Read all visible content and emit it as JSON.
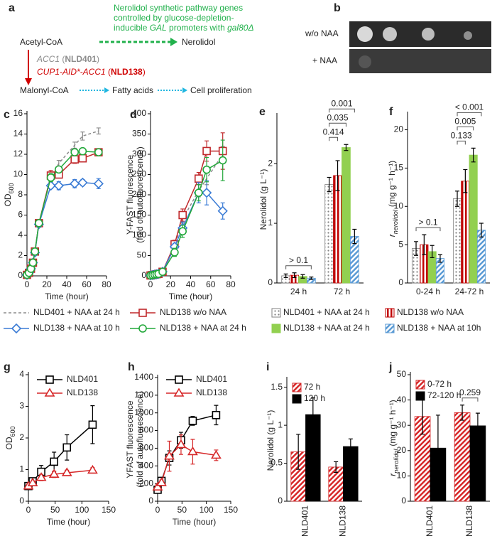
{
  "diagram": {
    "panel_label": "a",
    "note": [
      [
        "Nerolidol synthetic pathway genes"
      ],
      [
        "controlled by glucose-depletion-"
      ],
      [
        "inducible ",
        "GAL",
        " promoters with ",
        "gal80Δ"
      ]
    ],
    "substrate": "Acetyl-CoA",
    "product": "Nerolidol",
    "strains": [
      [
        "ACC1",
        " (",
        "NLD401",
        ")"
      ],
      [
        "CUP1-AID*-ACC1",
        " (",
        "NLD138",
        ")"
      ]
    ],
    "intermediate": "Malonyl-CoA",
    "downstream": [
      "Fatty acids",
      "Cell proliferation"
    ]
  },
  "plate": {
    "panel_label": "b",
    "rows": [
      "w/o NAA",
      "+ NAA"
    ]
  },
  "chart_data": [
    {
      "type": "line",
      "panel_label": "c",
      "xlabel": "Time (hour)",
      "ylabel": "OD",
      "ylabel_sub": "600",
      "x": [
        0,
        2,
        4,
        6,
        8,
        12,
        24,
        32,
        48,
        56,
        72
      ],
      "xlim": [
        0,
        80
      ],
      "xticks": [
        0,
        20,
        40,
        60,
        80
      ],
      "ylim": [
        0,
        16
      ],
      "yticks": [
        0,
        2,
        4,
        6,
        8,
        10,
        12,
        14,
        16
      ],
      "series": [
        {
          "name": "NLD401 + NAA at 24 h",
          "color": "#8c8c8c",
          "marker": "none",
          "linestyle": "dashed",
          "values": [
            0.1,
            0.3,
            0.7,
            1.3,
            2.3,
            5.2,
            9.6,
            11.1,
            12.9,
            13.8,
            14.3
          ],
          "errors": [
            0.05,
            0.05,
            0.1,
            0.1,
            0.2,
            0.3,
            0.4,
            0.3,
            0.3,
            0.4,
            0.3
          ]
        },
        {
          "name": "NLD138 w/o NAA",
          "color": "#c0282b",
          "marker": "square",
          "values": [
            0.1,
            0.3,
            0.7,
            1.3,
            2.4,
            5.2,
            9.9,
            10,
            11.5,
            11.6,
            12.2
          ],
          "errors": [
            0.05,
            0.05,
            0.1,
            0.1,
            0.2,
            0.3,
            0.5,
            0.3,
            0.4,
            0.3,
            0.3
          ]
        },
        {
          "name": "NLD138 + NAA at 10 h",
          "color": "#3a7bd5",
          "marker": "diamond",
          "values": [
            0.1,
            0.3,
            0.7,
            1.3,
            2.3,
            5.1,
            8.9,
            8.9,
            9.1,
            9.2,
            9.1
          ],
          "errors": [
            0.05,
            0.05,
            0.1,
            0.1,
            0.2,
            0.3,
            0.3,
            0.4,
            0.4,
            0.3,
            0.5
          ]
        },
        {
          "name": "NLD138 + NAA at 24 h",
          "color": "#22a83a",
          "marker": "circle",
          "values": [
            0.1,
            0.3,
            0.7,
            1.3,
            2.4,
            5.2,
            9.7,
            10.5,
            12.2,
            12.3,
            12.2
          ],
          "errors": [
            0.05,
            0.05,
            0.1,
            0.1,
            0.2,
            0.3,
            0.4,
            0.3,
            0.3,
            0.3,
            0.3
          ]
        }
      ]
    },
    {
      "type": "line",
      "panel_label": "d",
      "xlabel": "Time (hour)",
      "ylabel": "Y-FAST fluorescence",
      "ylabel2": "(fold of autofluorescence)",
      "x": [
        0,
        2,
        4,
        6,
        8,
        12,
        24,
        32,
        48,
        56,
        72
      ],
      "xlim": [
        0,
        80
      ],
      "xticks": [
        0,
        20,
        40,
        60,
        80
      ],
      "ylim": [
        0,
        400
      ],
      "yticks": [
        0,
        50,
        100,
        150,
        200,
        250,
        300,
        350,
        400
      ],
      "series": [
        {
          "color": "#8c8c8c",
          "marker": "none",
          "linestyle": "dashed",
          "values": [
            1,
            2,
            3,
            4,
            5,
            10,
            70,
            140,
            210,
            240,
            300
          ],
          "errors": [
            1,
            1,
            1,
            1,
            1,
            2,
            8,
            10,
            15,
            15,
            20
          ]
        },
        {
          "color": "#c0282b",
          "marker": "square",
          "values": [
            1,
            2,
            3,
            4,
            5,
            10,
            78,
            150,
            240,
            308,
            308
          ],
          "errors": [
            1,
            1,
            1,
            1,
            1,
            2,
            10,
            15,
            15,
            25,
            45
          ]
        },
        {
          "color": "#3a7bd5",
          "marker": "diamond",
          "values": [
            1,
            2,
            3,
            4,
            5,
            10,
            72,
            118,
            205,
            205,
            160
          ],
          "errors": [
            1,
            1,
            1,
            1,
            1,
            2,
            8,
            15,
            25,
            30,
            20
          ]
        },
        {
          "color": "#22a83a",
          "marker": "circle",
          "values": [
            1,
            2,
            3,
            4,
            5,
            10,
            58,
            110,
            205,
            262,
            285
          ],
          "errors": [
            1,
            1,
            1,
            1,
            1,
            2,
            10,
            15,
            20,
            30,
            50
          ]
        }
      ]
    },
    {
      "type": "bar",
      "panel_label": "e",
      "ylabel": "Nerolidol (g L⁻¹)",
      "categories": [
        "24 h",
        "72 h"
      ],
      "ylim": [
        0,
        2.8
      ],
      "yticks": [
        0,
        1,
        2
      ],
      "annotations": [
        "> 0.1",
        "0.414",
        "0.035",
        "0.001"
      ],
      "series": [
        {
          "name": "NLD401 + NAA at 24 h",
          "color": "#808080",
          "pattern": "dots",
          "values": [
            0.12,
            1.65
          ],
          "errors": [
            0.03,
            0.12
          ]
        },
        {
          "name": "NLD138 w/o NAA",
          "color": "#c00000",
          "pattern": "vertical",
          "values": [
            0.13,
            1.8
          ],
          "errors": [
            0.04,
            0.25
          ]
        },
        {
          "name": "NLD138 + NAA at 24 h",
          "color": "#92d050",
          "values": [
            0.11,
            2.27
          ],
          "errors": [
            0.03,
            0.05
          ]
        },
        {
          "name": "NLD138 + NAA at 10h",
          "color": "#5b9bd5",
          "pattern": "diagonal",
          "values": [
            0.08,
            0.78
          ],
          "errors": [
            0.02,
            0.12
          ]
        }
      ]
    },
    {
      "type": "bar",
      "panel_label": "f",
      "ylabel": "r",
      "ylabel_style": "italic",
      "ylabel_sub": "nerolidol",
      "ylabel_unit": "(mg g⁻¹ h⁻¹)",
      "categories": [
        "0-24 h",
        "24-72 h"
      ],
      "ylim": [
        0,
        22
      ],
      "yticks": [
        0,
        5,
        10,
        15,
        20
      ],
      "annotations": [
        "> 0.1",
        "0.133",
        "0.005",
        "< 0.001"
      ],
      "series": [
        {
          "color": "#808080",
          "pattern": "dots",
          "values": [
            4.5,
            11
          ],
          "errors": [
            0.9,
            1
          ]
        },
        {
          "color": "#c00000",
          "pattern": "vertical",
          "values": [
            5,
            13.3
          ],
          "errors": [
            1.3,
            1.5
          ]
        },
        {
          "color": "#92d050",
          "values": [
            4.1,
            16.7
          ],
          "errors": [
            0.8,
            0.9
          ]
        },
        {
          "color": "#5b9bd5",
          "pattern": "diagonal",
          "values": [
            3.2,
            6.9
          ],
          "errors": [
            0.5,
            0.9
          ]
        }
      ]
    },
    {
      "type": "line",
      "panel_label": "g",
      "xlabel": "Time (hour)",
      "ylabel": "OD",
      "ylabel_sub": "600",
      "x": [
        0,
        8,
        24,
        48,
        72,
        120
      ],
      "xlim": [
        0,
        150
      ],
      "xticks": [
        0,
        50,
        100,
        150
      ],
      "ylim": [
        0,
        4
      ],
      "yticks": [
        0,
        1,
        2,
        3,
        4
      ],
      "series": [
        {
          "name": "NLD401",
          "color": "#000000",
          "marker": "square",
          "values": [
            0.48,
            0.63,
            0.93,
            1.25,
            1.7,
            2.42
          ],
          "errors": [
            0.05,
            0.1,
            0.2,
            0.3,
            0.4,
            0.6
          ]
        },
        {
          "name": "NLD138",
          "color": "#d62728",
          "marker": "triangle",
          "values": [
            0.48,
            0.58,
            0.75,
            0.85,
            0.9,
            0.98
          ],
          "errors": [
            0.05,
            0.05,
            0.1,
            0.1,
            0.08,
            0.08
          ]
        }
      ]
    },
    {
      "type": "line",
      "panel_label": "h",
      "xlabel": "Time (hour)",
      "ylabel": "YFAST fluorescence",
      "ylabel2": "(fold of autofluorescence)",
      "x": [
        0,
        8,
        24,
        48,
        72,
        120
      ],
      "xlim": [
        0,
        150
      ],
      "xticks": [
        0,
        50,
        100,
        150
      ],
      "ylim": [
        0,
        1400
      ],
      "yticks": [
        0,
        200,
        400,
        600,
        800,
        1000,
        1200,
        1400
      ],
      "series": [
        {
          "name": "NLD401",
          "color": "#000000",
          "marker": "square",
          "values": [
            130,
            230,
            490,
            690,
            910,
            975
          ],
          "errors": [
            30,
            40,
            80,
            90,
            50,
            110
          ]
        },
        {
          "name": "NLD138",
          "color": "#d62728",
          "marker": "triangle",
          "values": [
            160,
            210,
            510,
            640,
            560,
            520
          ],
          "errors": [
            30,
            30,
            170,
            110,
            140,
            60
          ]
        }
      ]
    },
    {
      "type": "bar",
      "panel_label": "i",
      "ylabel": "Nerolidol (g L⁻¹)",
      "categories": [
        "NLD401",
        "NLD138"
      ],
      "xtick_rotation": -90,
      "ylim": [
        0,
        1.6
      ],
      "yticks": [
        0,
        0.5,
        1,
        1.5
      ],
      "series": [
        {
          "name": "72 h",
          "color": "#d62728",
          "pattern": "diagonal",
          "values": [
            0.65,
            0.45
          ],
          "errors": [
            0.23,
            0.07
          ]
        },
        {
          "name": "120 h",
          "color": "#000000",
          "values": [
            1.14,
            0.72
          ],
          "errors": [
            0.22,
            0.1
          ]
        }
      ]
    },
    {
      "type": "bar",
      "panel_label": "j",
      "ylabel": "r",
      "ylabel_style": "italic",
      "ylabel_sub": "nerolidol",
      "ylabel_unit": "(mg g⁻¹ h⁻¹)",
      "categories": [
        "NLD401",
        "NLD138"
      ],
      "xtick_rotation": -90,
      "ylim": [
        0,
        50
      ],
      "yticks": [
        0,
        10,
        20,
        30,
        40,
        50
      ],
      "annotations": [
        "0.259"
      ],
      "series": [
        {
          "name": "0-72 h",
          "color": "#d62728",
          "pattern": "diagonal",
          "values": [
            33.5,
            35
          ],
          "errors": [
            7,
            3
          ]
        },
        {
          "name": "72-120 h",
          "color": "#000000",
          "values": [
            21,
            29.8
          ],
          "errors": [
            13,
            5
          ]
        }
      ]
    }
  ]
}
